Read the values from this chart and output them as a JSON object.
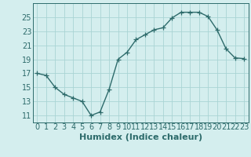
{
  "x": [
    0,
    1,
    2,
    3,
    4,
    5,
    6,
    7,
    8,
    9,
    10,
    11,
    12,
    13,
    14,
    15,
    16,
    17,
    18,
    19,
    20,
    21,
    22,
    23
  ],
  "y": [
    17,
    16.7,
    15,
    14,
    13.5,
    13,
    11,
    11.5,
    14.7,
    19,
    20,
    21.8,
    22.5,
    23.2,
    23.5,
    24.9,
    25.7,
    25.7,
    25.7,
    25.1,
    23.2,
    20.5,
    19.2,
    19.1
  ],
  "line_color": "#2d6b6b",
  "marker": "+",
  "bg_color": "#d4eeee",
  "grid_color": "#aad4d4",
  "xlabel": "Humidex (Indice chaleur)",
  "ylim": [
    10,
    27
  ],
  "xlim": [
    -0.5,
    23.5
  ],
  "yticks": [
    11,
    13,
    15,
    17,
    19,
    21,
    23,
    25
  ],
  "xtick_labels": [
    "0",
    "1",
    "2",
    "3",
    "4",
    "5",
    "6",
    "7",
    "8",
    "9",
    "10",
    "11",
    "12",
    "13",
    "14",
    "15",
    "16",
    "17",
    "18",
    "19",
    "20",
    "21",
    "22",
    "23"
  ],
  "xlabel_fontsize": 8,
  "tick_fontsize": 7,
  "line_width": 1.0,
  "marker_size": 4
}
